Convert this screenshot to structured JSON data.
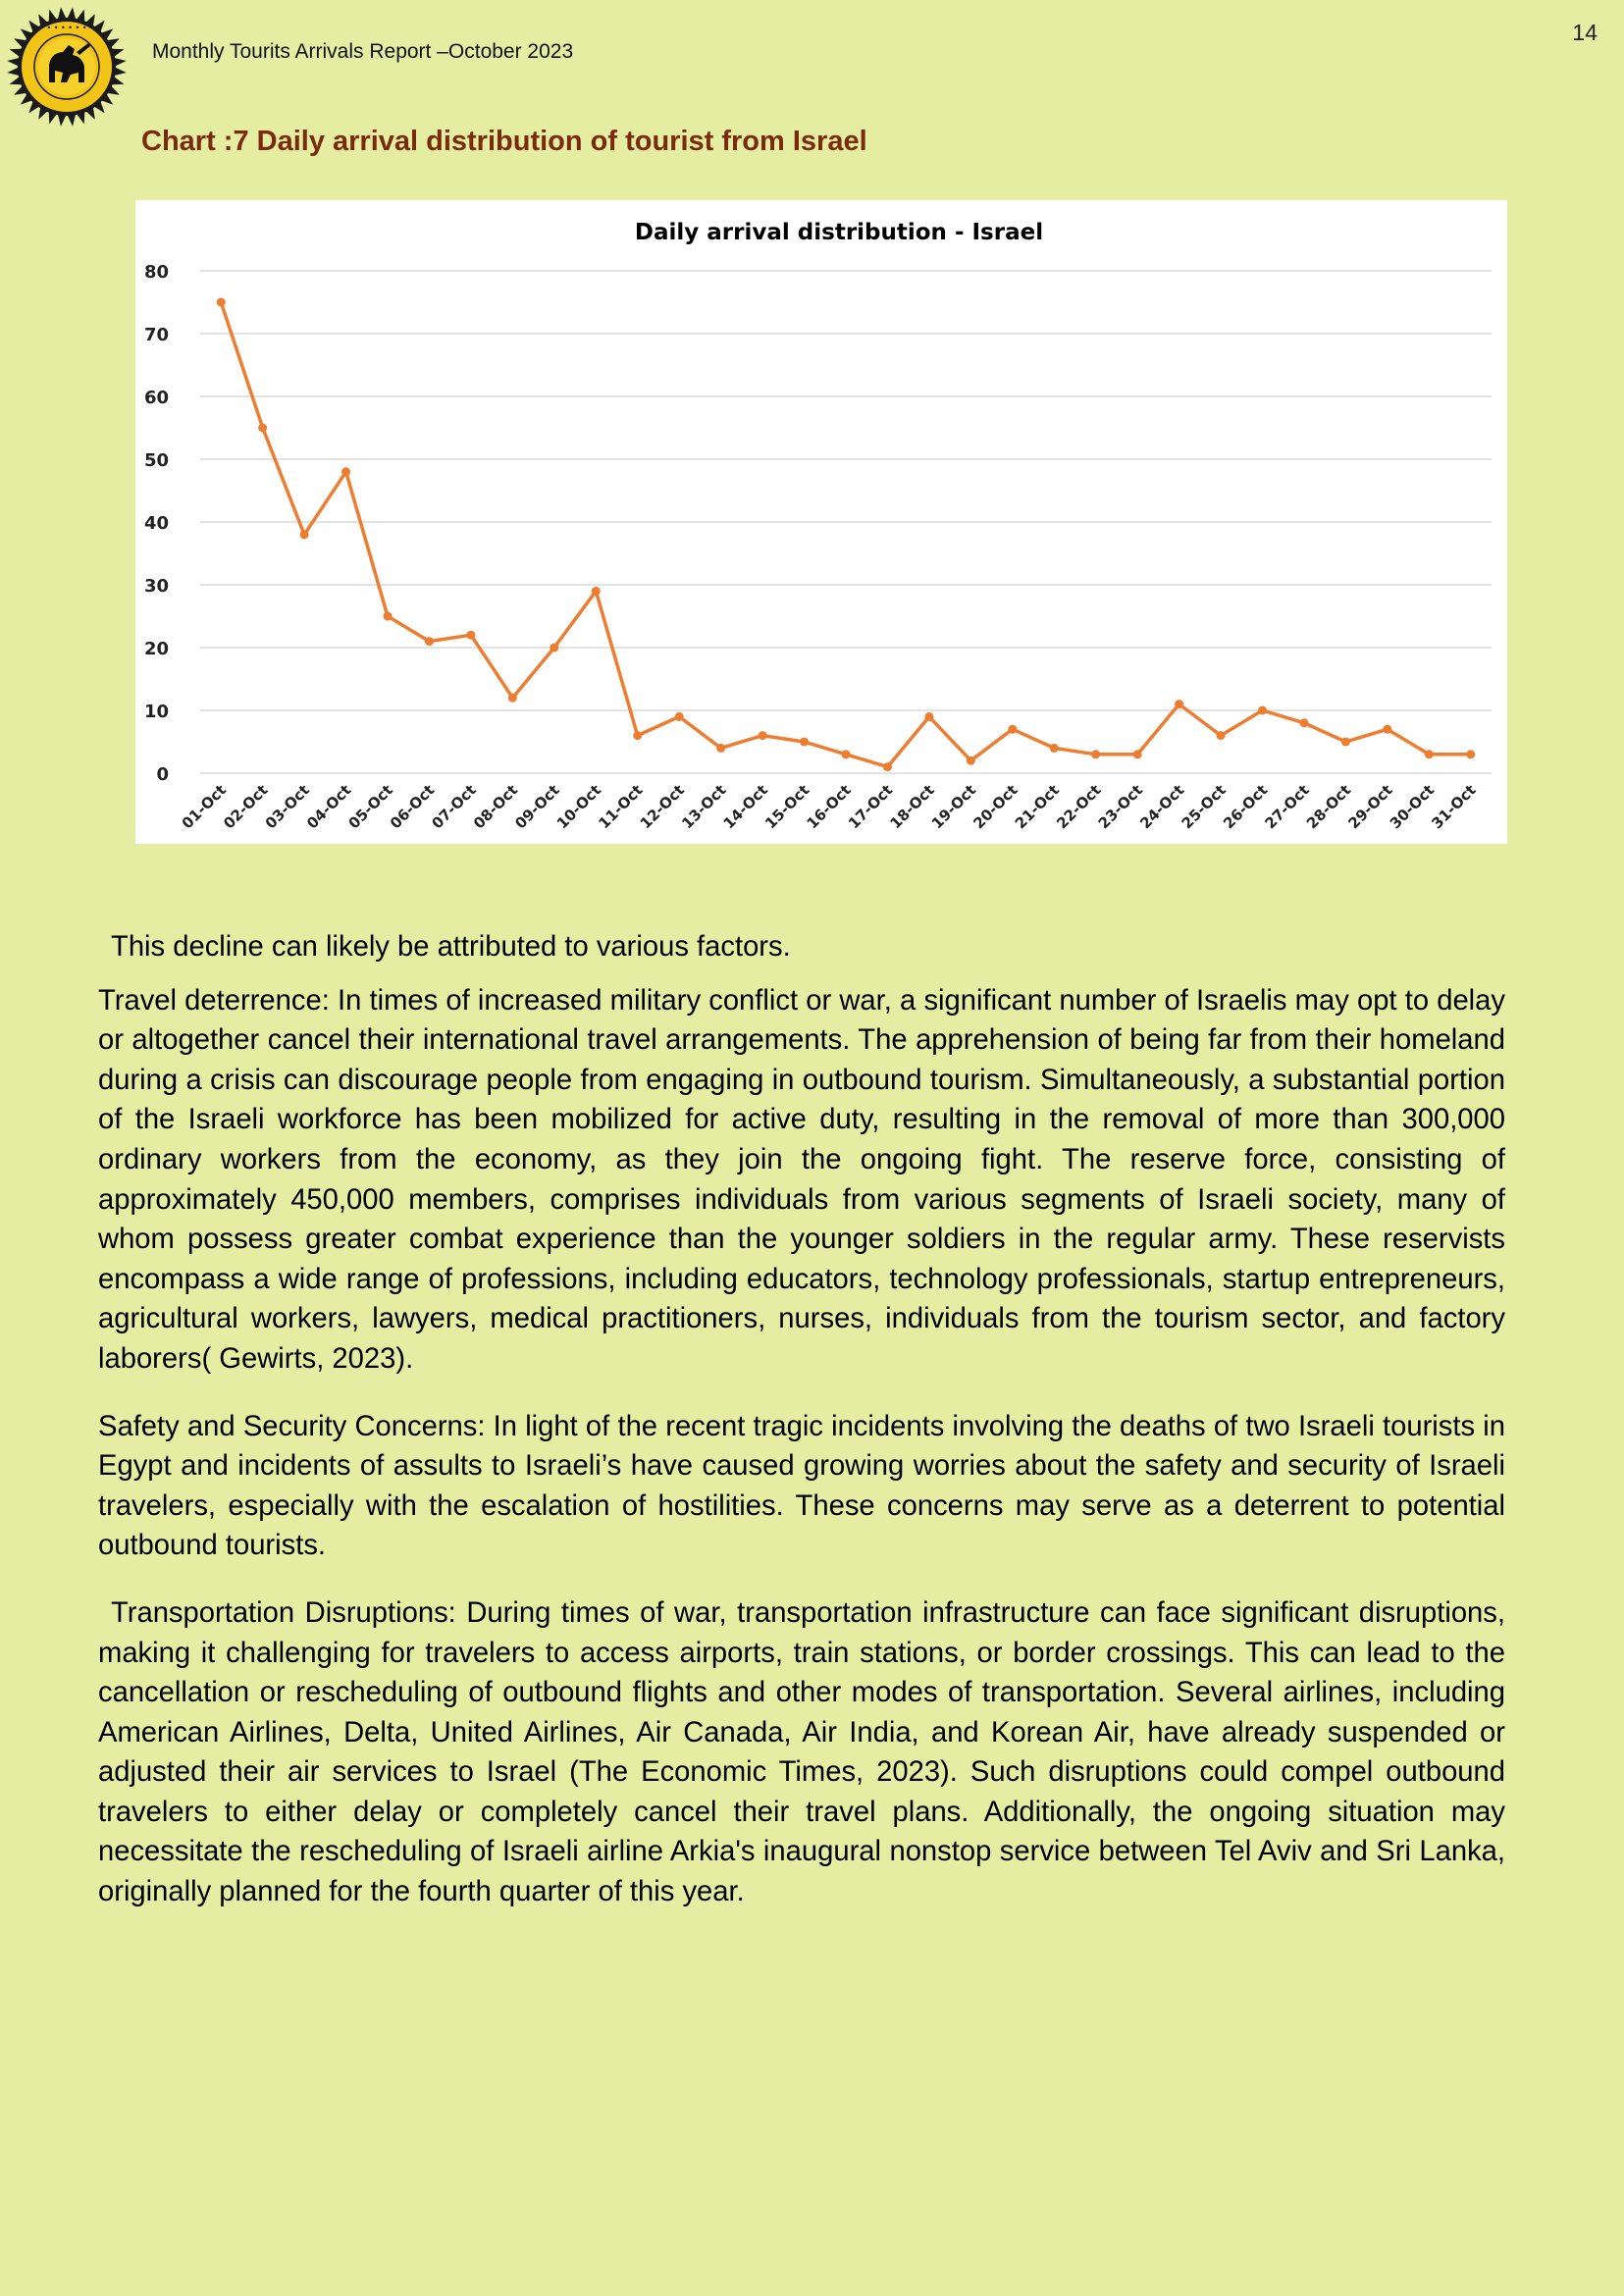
{
  "header": {
    "title": "Monthly Tourits Arrivals Report –October 2023",
    "page_number": "14",
    "logo_icon": "tourism-authority-seal-icon",
    "logo_colors": {
      "ring": "#f2c417",
      "rim": "#1b1b1b",
      "center": "#111111"
    }
  },
  "chart_caption": "Chart :7 Daily arrival distribution of tourist from Israel",
  "chart_data": {
    "type": "line",
    "title": "Daily arrival distribution - Israel",
    "xlabel": "",
    "ylabel": "",
    "categories": [
      "01-Oct",
      "02-Oct",
      "03-Oct",
      "04-Oct",
      "05-Oct",
      "06-Oct",
      "07-Oct",
      "08-Oct",
      "09-Oct",
      "10-Oct",
      "11-Oct",
      "12-Oct",
      "13-Oct",
      "14-Oct",
      "15-Oct",
      "16-Oct",
      "17-Oct",
      "18-Oct",
      "19-Oct",
      "20-Oct",
      "21-Oct",
      "22-Oct",
      "23-Oct",
      "24-Oct",
      "25-Oct",
      "26-Oct",
      "27-Oct",
      "28-Oct",
      "29-Oct",
      "30-Oct",
      "31-Oct"
    ],
    "values": [
      75,
      55,
      38,
      48,
      25,
      21,
      22,
      12,
      20,
      29,
      6,
      9,
      4,
      6,
      5,
      3,
      1,
      9,
      2,
      7,
      4,
      3,
      3,
      11,
      6,
      10,
      8,
      5,
      7,
      3,
      3
    ],
    "ylim": [
      0,
      80
    ],
    "yticks": [
      0,
      10,
      20,
      30,
      40,
      50,
      60,
      70,
      80
    ],
    "grid": true,
    "legend": "none",
    "line_color": "#ed7d31",
    "grid_color": "#d9d9d9"
  },
  "paragraphs": [
    "This decline can likely be attributed to various factors.",
    "Travel deterrence: In times of increased military conflict or war, a significant number of Israelis may opt to delay or altogether cancel their international travel arrangements. The apprehension of being far from their homeland during a crisis can discourage people from engaging in outbound tourism. Simultaneously, a substantial portion of the Israeli workforce has been mobilized for active duty, resulting in the removal of more than 300,000 ordinary workers from the economy, as they join the ongoing fight. The reserve force, consisting of approximately 450,000 members, comprises individuals from various segments of Israeli society, many of whom possess greater combat experience than the younger soldiers in the regular army. These reservists encompass a wide range of professions, including educators, technology professionals, startup entrepreneurs, agricultural workers, lawyers, medical practitioners, nurses, individuals from the tourism sector, and factory laborers( Gewirts, 2023).",
    "Safety and Security Concerns: In light of the recent tragic incidents involving the deaths of two Israeli tourists in Egypt and incidents of assults to Israeli’s have caused growing worries about the safety and security of Israeli travelers, especially with the escalation of hostilities. These concerns may serve as a deterrent to potential outbound tourists.",
    "Transportation Disruptions: During times of war, transportation infrastructure can face significant disruptions, making it challenging for travelers to access airports, train stations, or border crossings. This can lead to the cancellation or rescheduling of outbound flights and other modes of transportation. Several airlines, including American Airlines, Delta, United Airlines, Air Canada, Air India, and Korean Air, have already suspended or adjusted their air services to Israel (The Economic Times, 2023). Such disruptions could compel outbound travelers to either delay or completely cancel their travel plans. Additionally, the ongoing situation may necessitate the rescheduling of Israeli airline Arkia's inaugural nonstop service between Tel Aviv and Sri Lanka, originally planned for the fourth quarter of this year."
  ]
}
